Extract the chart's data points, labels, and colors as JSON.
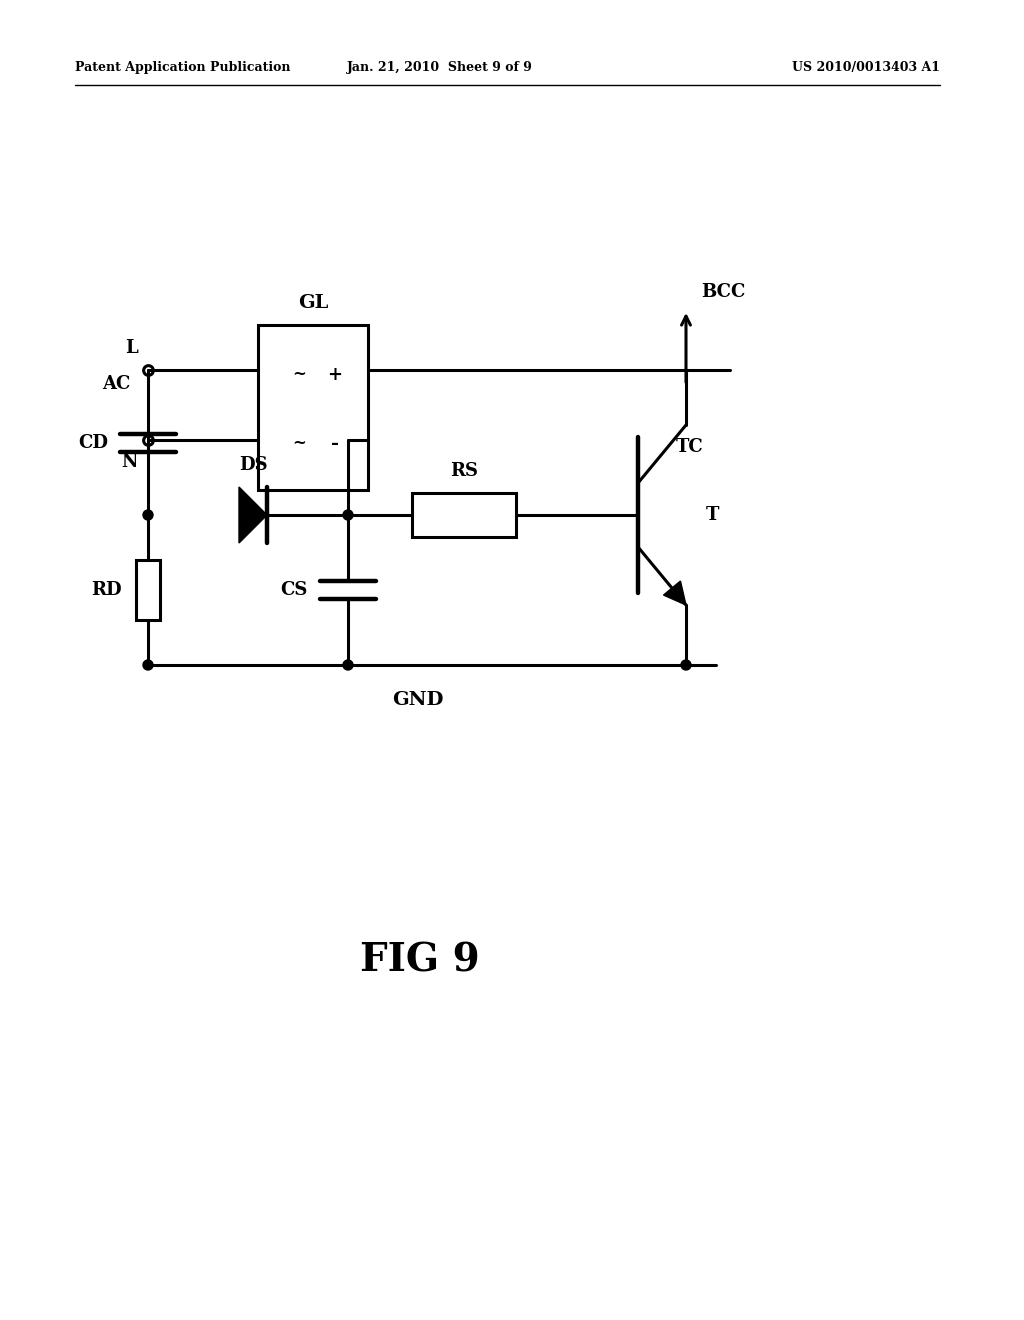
{
  "bg_color": "#ffffff",
  "line_color": "#000000",
  "header_left": "Patent Application Publication",
  "header_mid": "Jan. 21, 2010  Sheet 9 of 9",
  "header_right": "US 2010/0013403 A1",
  "fig_label": "FIG 9"
}
